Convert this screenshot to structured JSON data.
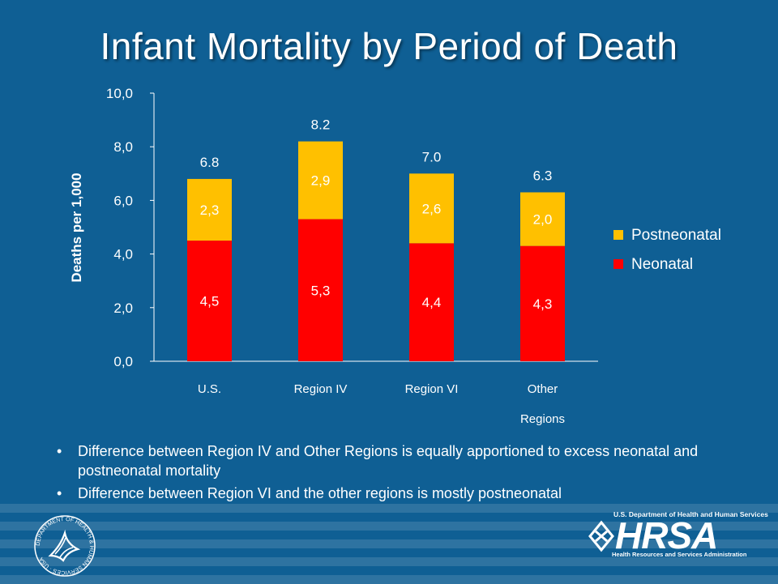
{
  "slide": {
    "title": "Infant Mortality by Period of Death",
    "bullets": [
      "Difference between Region IV and Other Regions is equally apportioned to excess neonatal and postneonatal mortality",
      "Difference between Region VI and the other regions is mostly postneonatal"
    ]
  },
  "chart_data": {
    "type": "bar",
    "stacked": true,
    "title": "",
    "xlabel": "",
    "ylabel": "Deaths per 1,000",
    "ylim": [
      0,
      10
    ],
    "yticks": [
      "0,0",
      "2,0",
      "4,0",
      "6,0",
      "8,0",
      "10,0"
    ],
    "ytick_values": [
      0,
      2,
      4,
      6,
      8,
      10
    ],
    "grid": false,
    "legend_position": "right",
    "categories": [
      "U.S.",
      "Region IV",
      "Region VI",
      "Other Regions"
    ],
    "series": [
      {
        "name": "Neonatal",
        "values": [
          4.5,
          5.3,
          4.4,
          4.3
        ],
        "labels": [
          "4,5",
          "5,3",
          "4,4",
          "4,3"
        ],
        "color": "#ff0000"
      },
      {
        "name": "Postneonatal",
        "values": [
          2.3,
          2.9,
          2.6,
          2.0
        ],
        "labels": [
          "2,3",
          "2,9",
          "2,6",
          "2,0"
        ],
        "color": "#ffc000"
      }
    ],
    "totals": [
      "6.8",
      "8.2",
      "7.0",
      "6.3"
    ],
    "legend_order": [
      "Postneonatal",
      "Neonatal"
    ]
  },
  "footer": {
    "hrsa_dept": "U.S. Department of Health and Human Services",
    "hrsa_word": "HRSA",
    "hrsa_sub": "Health Resources and Services Administration",
    "seal_text": "DEPARTMENT OF HEALTH & HUMAN SERVICES · USA",
    "seal_icon": "hhs-eagle-seal-icon",
    "hrsa_icon": "hrsa-diamond-logo-icon"
  },
  "colors": {
    "background": "#0f5f94",
    "neonatal": "#ff0000",
    "postneonatal": "#ffc000",
    "text": "#ffffff"
  }
}
